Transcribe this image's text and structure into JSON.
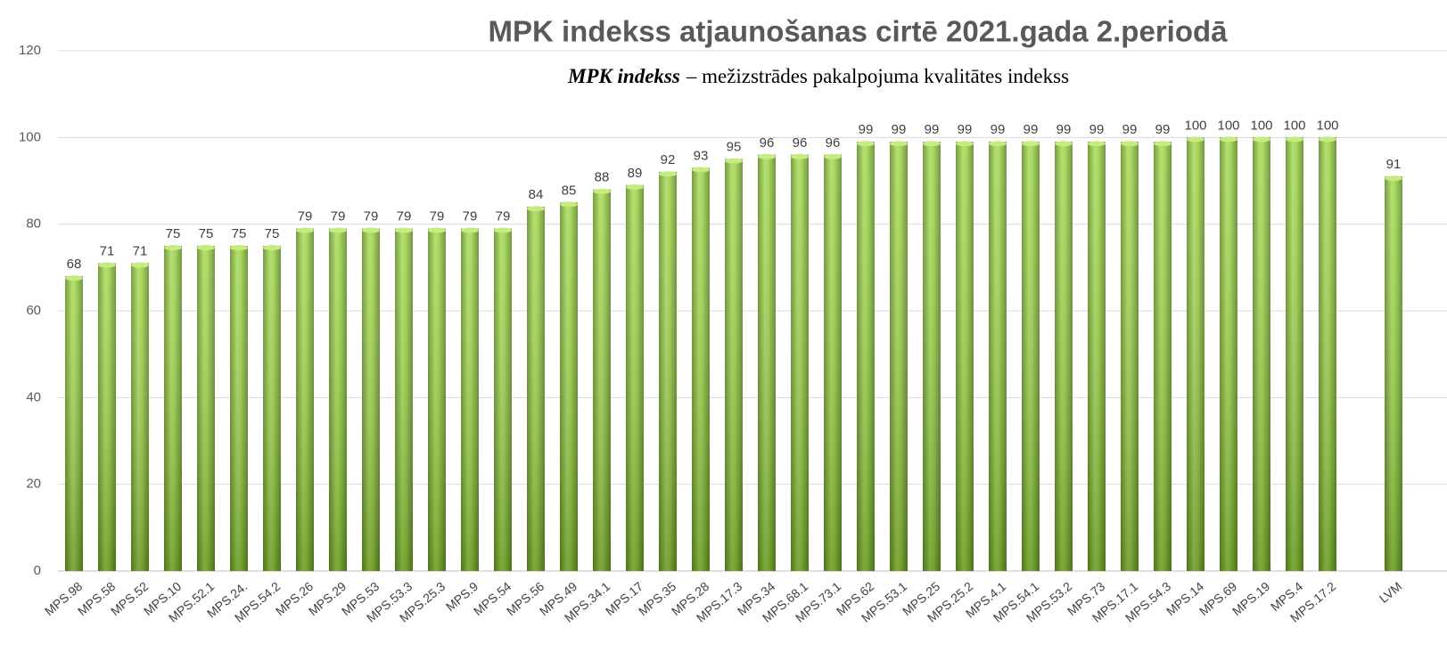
{
  "chart_data": {
    "type": "bar",
    "title": "MPK indekss atjaunošanas cirtē 2021.gada 2.periodā",
    "subtitle": {
      "emphasis": "MPK indekss",
      "text": "– mežizstrādes pakalpojuma kvalitātes indekss"
    },
    "categories": [
      "MPS.98",
      "MPS.58",
      "MPS.52",
      "MPS.10",
      "MPS.52.1",
      "MPS.24.",
      "MPS.54.2",
      "MPS.26",
      "MPS.29",
      "MPS.53",
      "MPS.53.3",
      "MPS.25.3",
      "MPS.9",
      "MPS.54",
      "MPS.56",
      "MPS.49",
      "MPS.34.1",
      "MPS.17",
      "MPS.35",
      "MPS.28",
      "MPS.17.3",
      "MPS.34",
      "MPS.68.1",
      "MPS.73.1",
      "MPS.62",
      "MPS.53.1",
      "MPS.25",
      "MPS.25.2",
      "MPS.4.1",
      "MPS.54.1",
      "MPS.53.2",
      "MPS.73",
      "MPS.17.1",
      "MPS.54.3",
      "MPS.14",
      "MPS.69",
      "MPS.19",
      "MPS.4",
      "MPS.17.2",
      null,
      "LVM"
    ],
    "values": [
      68,
      71,
      71,
      75,
      75,
      75,
      75,
      79,
      79,
      79,
      79,
      79,
      79,
      79,
      84,
      85,
      88,
      89,
      92,
      93,
      95,
      96,
      96,
      96,
      99,
      99,
      99,
      99,
      99,
      99,
      99,
      99,
      99,
      99,
      100,
      100,
      100,
      100,
      100,
      null,
      91
    ],
    "color": "#8cc63f",
    "ylim": [
      0,
      120
    ],
    "yticks": [
      0,
      20,
      40,
      60,
      80,
      100,
      120
    ],
    "grid": true
  }
}
